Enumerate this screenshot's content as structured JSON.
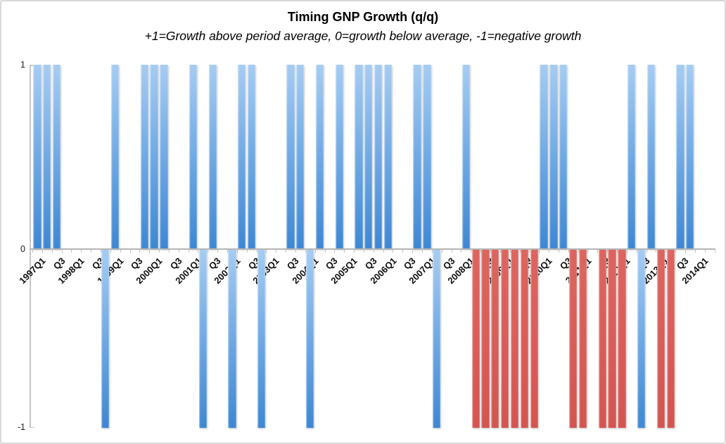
{
  "chart": {
    "title": "Timing GNP Growth (q/q)",
    "subtitle": "+1=Growth above period average, 0=growth below average, -1=negative growth"
  },
  "palette": {
    "blue_top": "#a6ccf2",
    "blue_bottom": "#3e87d3",
    "red_top": "#dd655f",
    "red_bottom": "#d45450",
    "axis_gray": "#c6c6c6",
    "zero_line_gray": "#b5b5b5"
  },
  "chart_data": {
    "type": "bar",
    "title": "Timing GNP Growth (q/q)",
    "subtitle": "+1=Growth above period average, 0=growth below average, -1=negative growth",
    "xlabel": "",
    "ylabel": "",
    "ylim": [
      -1,
      1
    ],
    "y_ticks": [
      "1",
      "0",
      "-1"
    ],
    "grid": false,
    "legend": "none",
    "categories": [
      "1997Q1",
      "1997Q2",
      "1997Q3",
      "1997Q4",
      "1998Q1",
      "1998Q2",
      "1998Q3",
      "1998Q4",
      "1999Q1",
      "1999Q2",
      "1999Q3",
      "1999Q4",
      "2000Q1",
      "2000Q2",
      "2000Q3",
      "2000Q4",
      "2001Q1",
      "2001Q2",
      "2001Q3",
      "2001Q4",
      "2002Q1",
      "2002Q2",
      "2002Q3",
      "2002Q4",
      "2003Q1",
      "2003Q2",
      "2003Q3",
      "2003Q4",
      "2004Q1",
      "2004Q2",
      "2004Q3",
      "2004Q4",
      "2005Q1",
      "2005Q2",
      "2005Q3",
      "2005Q4",
      "2006Q1",
      "2006Q2",
      "2006Q3",
      "2006Q4",
      "2007Q1",
      "2007Q2",
      "2007Q3",
      "2007Q4",
      "2008Q1",
      "2008Q2",
      "2008Q3",
      "2008Q4",
      "2009Q1",
      "2009Q2",
      "2009Q3",
      "2009Q4",
      "2010Q1",
      "2010Q2",
      "2010Q3",
      "2010Q4",
      "2011Q1",
      "2011Q2",
      "2011Q3",
      "2011Q4",
      "2012Q1",
      "2012Q2",
      "2012Q3",
      "2012Q4",
      "2013Q1",
      "2013Q2",
      "2013Q3",
      "2013Q4",
      "2014Q1",
      "2014Q2"
    ],
    "values": [
      1,
      1,
      1,
      0,
      0,
      0,
      0,
      -1,
      1,
      0,
      0,
      1,
      1,
      1,
      0,
      0,
      1,
      -1,
      1,
      0,
      -1,
      1,
      1,
      -1,
      0,
      0,
      1,
      1,
      -1,
      1,
      0,
      1,
      0,
      1,
      1,
      1,
      1,
      0,
      0,
      1,
      1,
      -1,
      0,
      0,
      1,
      -1,
      -1,
      -1,
      -1,
      -1,
      -1,
      -1,
      1,
      1,
      1,
      -1,
      -1,
      0,
      -1,
      -1,
      -1,
      1,
      -1,
      1,
      -1,
      -1,
      1,
      1,
      0,
      0
    ],
    "bar_colors": [
      "b",
      "b",
      "b",
      "b",
      "b",
      "b",
      "b",
      "b",
      "b",
      "b",
      "b",
      "b",
      "b",
      "b",
      "b",
      "b",
      "b",
      "b",
      "b",
      "b",
      "b",
      "b",
      "b",
      "b",
      "b",
      "b",
      "b",
      "b",
      "b",
      "b",
      "b",
      "b",
      "b",
      "b",
      "b",
      "b",
      "b",
      "b",
      "b",
      "b",
      "b",
      "b",
      "b",
      "b",
      "b",
      "r",
      "r",
      "r",
      "r",
      "r",
      "r",
      "r",
      "b",
      "b",
      "b",
      "r",
      "r",
      "b",
      "r",
      "r",
      "r",
      "b",
      "b",
      "b",
      "r",
      "r",
      "b",
      "b",
      "b",
      "b"
    ],
    "x_tick_labels": [
      "1997Q1",
      "",
      "Q3",
      "",
      "1998Q1",
      "",
      "Q3",
      "",
      "1999Q1",
      "",
      "Q3",
      "",
      "2000Q1",
      "",
      "Q3",
      "",
      "2001Q1",
      "",
      "Q3",
      "",
      "2002Q1",
      "",
      "Q3",
      "",
      "2003Q1",
      "",
      "Q3",
      "",
      "2004Q1",
      "",
      "Q3",
      "",
      "2005Q1",
      "",
      "Q3",
      "",
      "2006Q1",
      "",
      "Q3",
      "",
      "2007Q1",
      "",
      "Q3",
      "",
      "2008Q1",
      "",
      "Q3",
      "",
      "2009Q1",
      "",
      "Q3",
      "",
      "2010Q1",
      "",
      "Q3",
      "",
      "2011Q1",
      "",
      "Q3",
      "",
      "2012Q1",
      "",
      "Q3",
      "",
      "2013Q1",
      "",
      "Q3",
      "",
      "2014Q1",
      ""
    ]
  }
}
